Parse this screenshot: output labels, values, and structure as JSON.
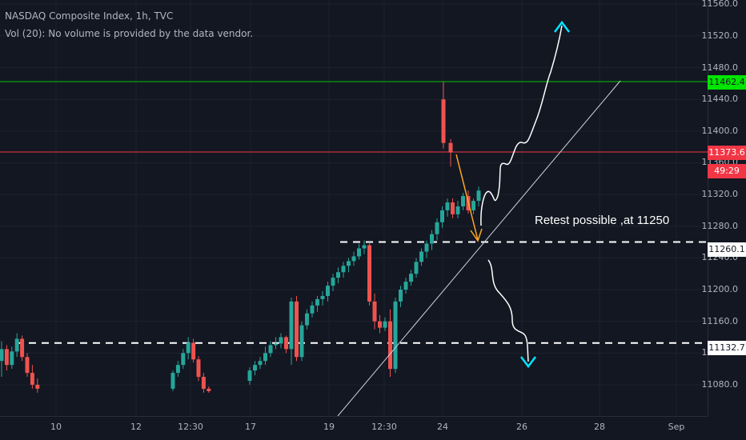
{
  "legend": {
    "title": "NASDAQ Composite Index, 1h, TVC",
    "vol": "Vol (20): No volume is provided by the data vendor."
  },
  "annotation": {
    "text": "Retest possible ,at 11250"
  },
  "price_tags": {
    "green": {
      "value": "11462.4",
      "bg": "#00e600",
      "fg": "#131722"
    },
    "red": {
      "value": "11373.6",
      "bg": "#f23645",
      "fg": "#ffffff"
    },
    "countdown": {
      "value": "49:29",
      "bg": "#f23645",
      "fg": "#ffffff"
    },
    "white1": {
      "value": "11260.1",
      "bg": "#ffffff",
      "fg": "#131722"
    },
    "white2": {
      "value": "11132.7",
      "bg": "#ffffff",
      "fg": "#131722"
    }
  },
  "colors": {
    "background": "#131722",
    "grid": "#1e222d",
    "up": "#26a69a",
    "down": "#ef5350",
    "green_line": "#00c800",
    "red_line": "#f23645",
    "arrow_cyan": "#00e5ff",
    "arrow_orange": "#ffa726"
  },
  "chart_data": {
    "type": "candlestick",
    "title": "NASDAQ Composite Index, 1h, TVC",
    "y_ticks": [
      "11560.0",
      "11520.0",
      "11480.0",
      "11440.0",
      "11400.0",
      "11360.0",
      "11320.0",
      "11280.0",
      "11240.0",
      "11200.0",
      "11160.0",
      "11120.0",
      "11080.0"
    ],
    "x_ticks": [
      "10",
      "12",
      "12:30",
      "17",
      "19",
      "12:30",
      "24",
      "26",
      "28",
      "Sep"
    ],
    "ylim": [
      11070,
      11562
    ],
    "horizontal_levels": [
      {
        "value": 11462.4,
        "style": "solid",
        "color": "green"
      },
      {
        "value": 11373.6,
        "style": "solid",
        "color": "red"
      },
      {
        "value": 11260.1,
        "style": "dashed",
        "color": "white"
      },
      {
        "value": 11132.7,
        "style": "dashed",
        "color": "white"
      }
    ],
    "candles": [
      [
        11110,
        11135,
        11090,
        11125
      ],
      [
        11125,
        11130,
        11098,
        11105
      ],
      [
        11105,
        11128,
        11100,
        11122
      ],
      [
        11122,
        11145,
        11115,
        11138
      ],
      [
        11138,
        11142,
        11110,
        11115
      ],
      [
        11115,
        11120,
        11090,
        11095
      ],
      [
        11095,
        11105,
        11075,
        11080
      ],
      [
        11080,
        11088,
        11070,
        11075
      ],
      [
        11075,
        11098,
        11072,
        11095
      ],
      [
        11095,
        11110,
        11090,
        11105
      ],
      [
        11105,
        11125,
        11100,
        11120
      ],
      [
        11120,
        11140,
        11112,
        11133
      ],
      [
        11133,
        11138,
        11108,
        11112
      ],
      [
        11112,
        11116,
        11085,
        11090
      ],
      [
        11090,
        11095,
        11070,
        11075
      ],
      [
        11075,
        11078,
        11070,
        11072
      ],
      [
        11085,
        11102,
        11080,
        11098
      ],
      [
        11098,
        11110,
        11092,
        11105
      ],
      [
        11105,
        11115,
        11100,
        11110
      ],
      [
        11110,
        11128,
        11105,
        11120
      ],
      [
        11120,
        11135,
        11115,
        11130
      ],
      [
        11130,
        11140,
        11125,
        11132
      ],
      [
        11132,
        11145,
        11126,
        11140
      ],
      [
        11140,
        11142,
        11120,
        11125
      ],
      [
        11125,
        11190,
        11105,
        11185
      ],
      [
        11185,
        11192,
        11110,
        11115
      ],
      [
        11115,
        11160,
        11110,
        11155
      ],
      [
        11155,
        11175,
        11150,
        11170
      ],
      [
        11170,
        11185,
        11165,
        11180
      ],
      [
        11180,
        11192,
        11172,
        11188
      ],
      [
        11188,
        11198,
        11180,
        11192
      ],
      [
        11192,
        11210,
        11185,
        11205
      ],
      [
        11205,
        11220,
        11198,
        11215
      ],
      [
        11215,
        11228,
        11208,
        11222
      ],
      [
        11222,
        11235,
        11215,
        11230
      ],
      [
        11230,
        11240,
        11222,
        11236
      ],
      [
        11236,
        11248,
        11230,
        11242
      ],
      [
        11242,
        11258,
        11238,
        11252
      ],
      [
        11252,
        11262,
        11245,
        11256
      ],
      [
        11256,
        11260,
        11180,
        11185
      ],
      [
        11185,
        11195,
        11150,
        11160
      ],
      [
        11160,
        11168,
        11145,
        11152
      ],
      [
        11152,
        11165,
        11148,
        11160
      ],
      [
        11160,
        11175,
        11090,
        11100
      ],
      [
        11100,
        11190,
        11095,
        11185
      ],
      [
        11185,
        11205,
        11178,
        11200
      ],
      [
        11200,
        11215,
        11195,
        11210
      ],
      [
        11210,
        11225,
        11205,
        11220
      ],
      [
        11220,
        11240,
        11215,
        11235
      ],
      [
        11235,
        11252,
        11230,
        11248
      ],
      [
        11248,
        11262,
        11240,
        11258
      ],
      [
        11258,
        11275,
        11250,
        11270
      ],
      [
        11270,
        11290,
        11262,
        11285
      ],
      [
        11285,
        11305,
        11278,
        11300
      ],
      [
        11300,
        11315,
        11292,
        11310
      ],
      [
        11310,
        11315,
        11290,
        11295
      ],
      [
        11295,
        11312,
        11290,
        11305
      ],
      [
        11305,
        11322,
        11300,
        11318
      ],
      [
        11318,
        11325,
        11296,
        11300
      ],
      [
        11300,
        11315,
        11295,
        11312
      ],
      [
        11312,
        11330,
        11305,
        11325
      ],
      [
        11440,
        11462,
        11378,
        11385
      ],
      [
        11385,
        11390,
        11355,
        11373
      ]
    ]
  }
}
